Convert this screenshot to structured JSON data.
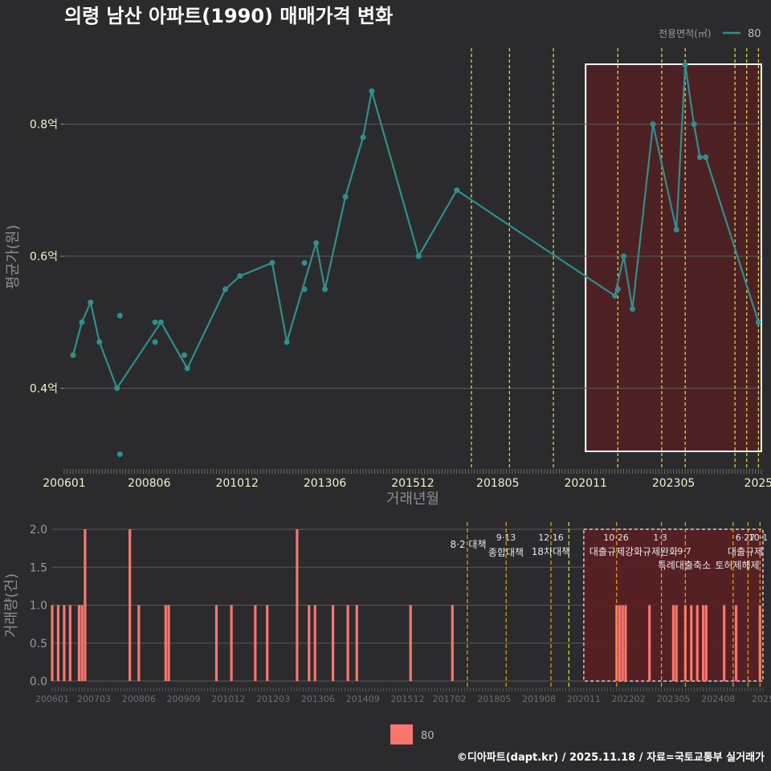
{
  "title": "의령 남산 아파트(1990) 매매가격 변화",
  "caption": "©디아파트(dapt.kr) / 2025.11.18 / 자료=국토교통부 실거래가",
  "colors": {
    "background": "#2b2b2d",
    "line": "#2f8f8c",
    "bar": "#f8766d",
    "policy_yellow": "#e8e23a",
    "policy_orange": "#f0a020",
    "highlight_fill": "#5a1f22",
    "grid": "#5a5a5a"
  },
  "legend": {
    "title": "전용면적(㎡)",
    "items": [
      "80"
    ]
  },
  "bottom_legend": {
    "items": [
      "80"
    ]
  },
  "chart_data": [
    {
      "type": "line",
      "title": "의령 남산 아파트(1990) 매매가격 변화",
      "xlabel": "거래년월",
      "ylabel": "평균가(원)",
      "xlim": [
        "2006-01",
        "2025-11"
      ],
      "ylim": [
        0.28,
        0.92
      ],
      "y_ticks": [
        0.4,
        0.6,
        0.8
      ],
      "y_tick_labels": [
        "0.4억",
        "0.6억",
        "0.8억"
      ],
      "x_ticks": [
        "2006-01",
        "2008-06",
        "2010-12",
        "2013-06",
        "2015-12",
        "2018-05",
        "2020-11",
        "2023-05",
        "2025-10"
      ],
      "x_tick_labels": [
        "200601",
        "200806",
        "201012",
        "201306",
        "201512",
        "201805",
        "202011",
        "202305",
        "2025"
      ],
      "series": [
        {
          "name": "80",
          "line": [
            [
              "2006-04",
              0.45
            ],
            [
              "2006-07",
              0.5
            ],
            [
              "2006-10",
              0.53
            ],
            [
              "2007-01",
              0.47
            ],
            [
              "2007-07",
              0.4
            ],
            [
              "2008-10",
              0.5
            ],
            [
              "2009-07",
              0.43
            ],
            [
              "2010-08",
              0.55
            ],
            [
              "2011-01",
              0.57
            ],
            [
              "2011-12",
              0.59
            ],
            [
              "2012-05",
              0.47
            ],
            [
              "2013-03",
              0.62
            ],
            [
              "2013-06",
              0.55
            ],
            [
              "2014-01",
              0.69
            ],
            [
              "2014-07",
              0.78
            ],
            [
              "2014-10",
              0.85
            ],
            [
              "2016-02",
              0.6
            ],
            [
              "2017-03",
              0.7
            ],
            [
              "2021-09",
              0.54
            ],
            [
              "2021-12",
              0.6
            ],
            [
              "2022-03",
              0.52
            ],
            [
              "2022-10",
              0.8
            ],
            [
              "2023-06",
              0.64
            ],
            [
              "2023-09",
              0.89
            ],
            [
              "2023-12",
              0.8
            ],
            [
              "2024-02",
              0.75
            ],
            [
              "2024-04",
              0.75
            ],
            [
              "2025-10",
              0.5
            ]
          ],
          "points": [
            [
              "2006-04",
              0.45
            ],
            [
              "2006-07",
              0.5
            ],
            [
              "2006-10",
              0.53
            ],
            [
              "2007-01",
              0.47
            ],
            [
              "2007-07",
              0.4
            ],
            [
              "2007-08",
              0.51
            ],
            [
              "2007-08",
              0.3
            ],
            [
              "2008-08",
              0.5
            ],
            [
              "2008-08",
              0.47
            ],
            [
              "2008-10",
              0.5
            ],
            [
              "2009-06",
              0.45
            ],
            [
              "2009-07",
              0.43
            ],
            [
              "2010-08",
              0.55
            ],
            [
              "2011-01",
              0.57
            ],
            [
              "2011-12",
              0.59
            ],
            [
              "2012-05",
              0.47
            ],
            [
              "2012-11",
              0.59
            ],
            [
              "2012-11",
              0.55
            ],
            [
              "2013-03",
              0.62
            ],
            [
              "2013-06",
              0.55
            ],
            [
              "2014-01",
              0.69
            ],
            [
              "2014-07",
              0.78
            ],
            [
              "2014-10",
              0.85
            ],
            [
              "2016-02",
              0.6
            ],
            [
              "2017-03",
              0.7
            ],
            [
              "2021-09",
              0.54
            ],
            [
              "2021-10",
              0.55
            ],
            [
              "2021-12",
              0.6
            ],
            [
              "2022-03",
              0.52
            ],
            [
              "2022-10",
              0.8
            ],
            [
              "2023-06",
              0.64
            ],
            [
              "2023-09",
              0.89
            ],
            [
              "2023-12",
              0.8
            ],
            [
              "2024-02",
              0.75
            ],
            [
              "2024-04",
              0.75
            ],
            [
              "2025-10",
              0.5
            ]
          ]
        }
      ],
      "highlight_range": [
        "2020-11",
        "2025-11"
      ],
      "policy_lines": [
        {
          "date": "2017-08",
          "color": "yellow"
        },
        {
          "date": "2018-09",
          "color": "yellow"
        },
        {
          "date": "2019-12",
          "color": "yellow"
        },
        {
          "date": "2021-10",
          "color": "yellow"
        },
        {
          "date": "2023-01",
          "color": "yellow"
        },
        {
          "date": "2023-09",
          "color": "yellow"
        },
        {
          "date": "2025-02",
          "color": "yellow"
        },
        {
          "date": "2025-06",
          "color": "yellow"
        },
        {
          "date": "2025-10",
          "color": "yellow"
        }
      ]
    },
    {
      "type": "bar",
      "ylabel": "거래량(건)",
      "ylim": [
        0,
        2
      ],
      "y_ticks": [
        0,
        0.5,
        1,
        1.5,
        2
      ],
      "y_tick_labels": [
        "0.0",
        "0.5",
        "1.0",
        "1.5",
        "2.0"
      ],
      "x_tick_labels": [
        "200601",
        "200703",
        "200806",
        "200909",
        "201012",
        "201203",
        "201306",
        "201409",
        "201512",
        "201702",
        "201805",
        "201908",
        "202011",
        "202202",
        "202305",
        "202408",
        "2025"
      ],
      "x_ticks": [
        "2006-01",
        "2007-03",
        "2008-06",
        "2009-09",
        "2010-12",
        "2012-03",
        "2013-06",
        "2014-09",
        "2015-12",
        "2017-02",
        "2018-05",
        "2019-08",
        "2020-11",
        "2022-02",
        "2023-05",
        "2024-08",
        "2025-11"
      ],
      "series": [
        {
          "name": "80",
          "bars": [
            [
              "2006-01",
              1
            ],
            [
              "2006-03",
              1
            ],
            [
              "2006-05",
              1
            ],
            [
              "2006-07",
              1
            ],
            [
              "2006-10",
              1
            ],
            [
              "2006-11",
              1
            ],
            [
              "2006-12",
              2
            ],
            [
              "2008-03",
              2
            ],
            [
              "2008-06",
              1
            ],
            [
              "2009-03",
              1
            ],
            [
              "2009-04",
              1
            ],
            [
              "2010-08",
              1
            ],
            [
              "2011-01",
              1
            ],
            [
              "2011-09",
              1
            ],
            [
              "2012-01",
              1
            ],
            [
              "2012-11",
              2
            ],
            [
              "2013-03",
              1
            ],
            [
              "2013-05",
              1
            ],
            [
              "2013-11",
              1
            ],
            [
              "2014-04",
              1
            ],
            [
              "2014-07",
              1
            ],
            [
              "2016-01",
              1
            ],
            [
              "2017-03",
              1
            ],
            [
              "2021-10",
              1
            ],
            [
              "2021-11",
              1
            ],
            [
              "2021-12",
              1
            ],
            [
              "2022-01",
              1
            ],
            [
              "2022-09",
              1
            ],
            [
              "2023-05",
              1
            ],
            [
              "2023-06",
              1
            ],
            [
              "2023-09",
              1
            ],
            [
              "2023-11",
              1
            ],
            [
              "2024-01",
              1
            ],
            [
              "2024-03",
              1
            ],
            [
              "2024-04",
              1
            ],
            [
              "2024-10",
              1
            ],
            [
              "2025-02",
              1
            ],
            [
              "2025-10",
              1
            ]
          ]
        }
      ],
      "highlight_range": [
        "2020-11",
        "2025-11"
      ],
      "policies": [
        {
          "date": "2017-08",
          "date_label": "8·2 대책",
          "name": "",
          "color": "orange"
        },
        {
          "date": "2018-09",
          "date_label": "9·13",
          "name": "종합대책",
          "color": "orange"
        },
        {
          "date": "2019-12",
          "date_label": "12·16",
          "name": "18차대책",
          "color": "orange"
        },
        {
          "date": "2020-06",
          "date_label": "",
          "name": "",
          "color": "yellow"
        },
        {
          "date": "2021-10",
          "date_label": "10·26",
          "name": "대출규제강화",
          "color": "orange"
        },
        {
          "date": "2023-01",
          "date_label": "1·3",
          "name": "규제완화",
          "color": "orange"
        },
        {
          "date": "2023-09",
          "date_label": "9·7",
          "name": "특례대출축소",
          "color": "orange"
        },
        {
          "date": "2025-01",
          "date_label": "",
          "name": "토허제해제",
          "color": "orange"
        },
        {
          "date": "2025-06",
          "date_label": "6·27",
          "name": "대출규제",
          "color": "orange"
        },
        {
          "date": "2025-10",
          "date_label": "10·1",
          "name": "",
          "color": "orange"
        }
      ]
    }
  ]
}
